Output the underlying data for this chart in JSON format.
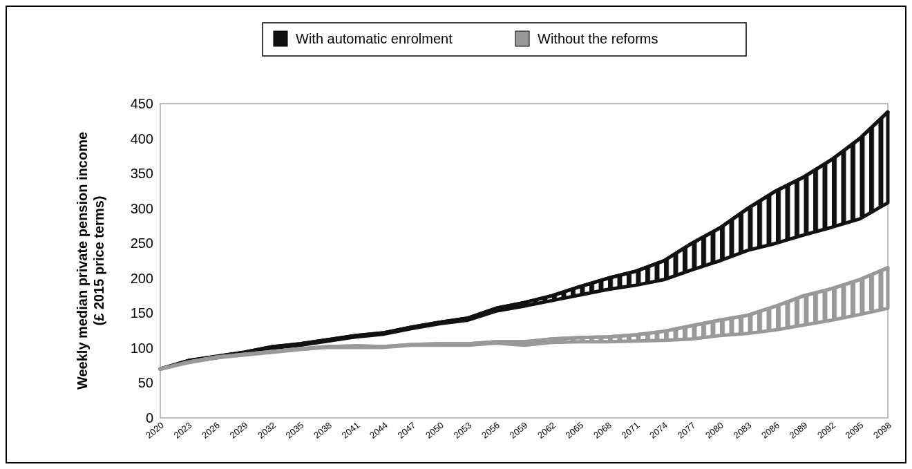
{
  "chart_data": {
    "type": "line",
    "ylabel": "Weekly median private pension income (£ 2015 price terms)",
    "x": [
      2020,
      2023,
      2026,
      2029,
      2032,
      2035,
      2038,
      2041,
      2044,
      2047,
      2050,
      2053,
      2056,
      2059,
      2062,
      2065,
      2068,
      2071,
      2074,
      2077,
      2080,
      2083,
      2086,
      2089,
      2092,
      2095,
      2098
    ],
    "series": [
      {
        "name": "With automatic enrolment",
        "color": "#111111",
        "values": [
          70,
          82,
          88,
          94,
          102,
          106,
          112,
          118,
          122,
          130,
          137,
          143,
          157,
          165,
          175,
          188,
          200,
          210,
          225,
          250,
          272,
          300,
          325,
          345,
          370,
          400,
          438
        ],
        "upper": [
          70,
          82,
          88,
          94,
          102,
          106,
          112,
          118,
          122,
          130,
          137,
          143,
          157,
          165,
          175,
          188,
          200,
          210,
          225,
          250,
          272,
          300,
          325,
          345,
          370,
          400,
          438
        ],
        "lower": [
          70,
          80,
          86,
          92,
          100,
          104,
          110,
          116,
          120,
          128,
          135,
          140,
          153,
          160,
          168,
          176,
          184,
          190,
          198,
          212,
          225,
          240,
          250,
          262,
          273,
          285,
          308
        ]
      },
      {
        "name": "Without the reforms",
        "color": "#999999",
        "values": [
          70,
          80,
          87,
          91,
          95,
          99,
          102,
          103,
          102,
          105,
          106,
          106,
          109,
          109,
          113,
          115,
          116,
          119,
          124,
          132,
          140,
          147,
          160,
          175,
          185,
          198,
          215
        ],
        "upper": [
          70,
          80,
          87,
          91,
          95,
          99,
          102,
          103,
          102,
          105,
          106,
          106,
          109,
          109,
          113,
          115,
          116,
          119,
          124,
          132,
          140,
          147,
          160,
          175,
          185,
          198,
          215
        ],
        "lower": [
          70,
          79,
          86,
          90,
          94,
          98,
          101,
          101,
          101,
          104,
          104,
          104,
          107,
          104,
          108,
          109,
          109,
          110,
          111,
          113,
          118,
          121,
          126,
          133,
          140,
          148,
          157
        ]
      }
    ],
    "xlim": [
      2020,
      2098
    ],
    "xticks": [
      2020,
      2023,
      2026,
      2029,
      2032,
      2035,
      2038,
      2041,
      2044,
      2047,
      2050,
      2053,
      2056,
      2059,
      2062,
      2065,
      2068,
      2071,
      2074,
      2077,
      2080,
      2083,
      2086,
      2089,
      2092,
      2095,
      2098
    ],
    "ylim": [
      0,
      450
    ],
    "yticks": [
      0,
      50,
      100,
      150,
      200,
      250,
      300,
      350,
      400,
      450
    ],
    "grid": false,
    "legend": "top"
  }
}
